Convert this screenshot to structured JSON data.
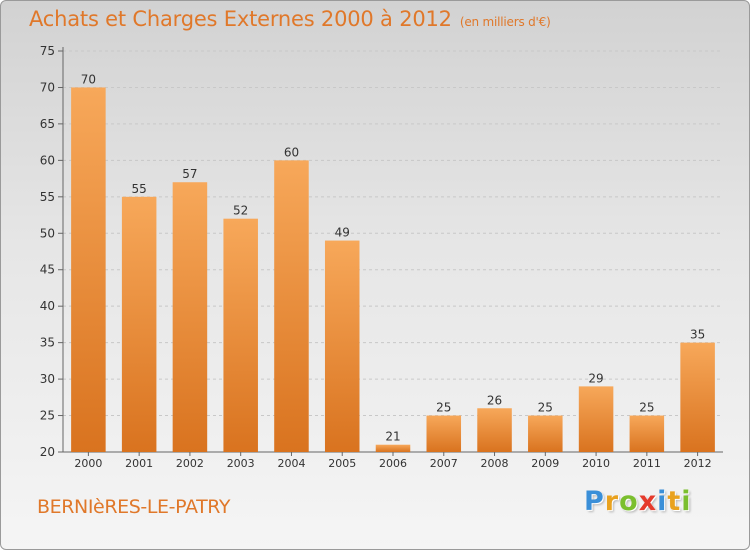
{
  "title": "Achats et Charges Externes 2000 à 2012",
  "subtitle": "(en milliers d'€)",
  "place": "BERNIèRES-LE-PATRY",
  "logo": {
    "letters": [
      {
        "char": "P",
        "color": "#3a8fd8"
      },
      {
        "char": "r",
        "color": "#e9a21f"
      },
      {
        "char": "o",
        "color": "#7bbf2e"
      },
      {
        "char": "x",
        "color": "#e53b2c"
      },
      {
        "char": "i",
        "color": "#3a8fd8"
      },
      {
        "char": "t",
        "color": "#e9a21f"
      },
      {
        "char": "i",
        "color": "#7bbf2e"
      }
    ]
  },
  "colors": {
    "accent": "#e0782a",
    "bar_top": "#f7a85a",
    "bar_bottom": "#d9731f",
    "grid": "#c8c8c8",
    "text": "#333333"
  },
  "chart_data": {
    "type": "bar",
    "categories": [
      "2000",
      "2001",
      "2002",
      "2003",
      "2004",
      "2005",
      "2006",
      "2007",
      "2008",
      "2009",
      "2010",
      "2011",
      "2012"
    ],
    "values": [
      70,
      55,
      57,
      52,
      60,
      49,
      21,
      25,
      26,
      25,
      29,
      25,
      35
    ],
    "ylim": [
      20,
      75
    ],
    "yticks": [
      20,
      25,
      30,
      35,
      40,
      45,
      50,
      55,
      60,
      65,
      70,
      75
    ],
    "grid": true,
    "xlabel": "",
    "ylabel": ""
  }
}
